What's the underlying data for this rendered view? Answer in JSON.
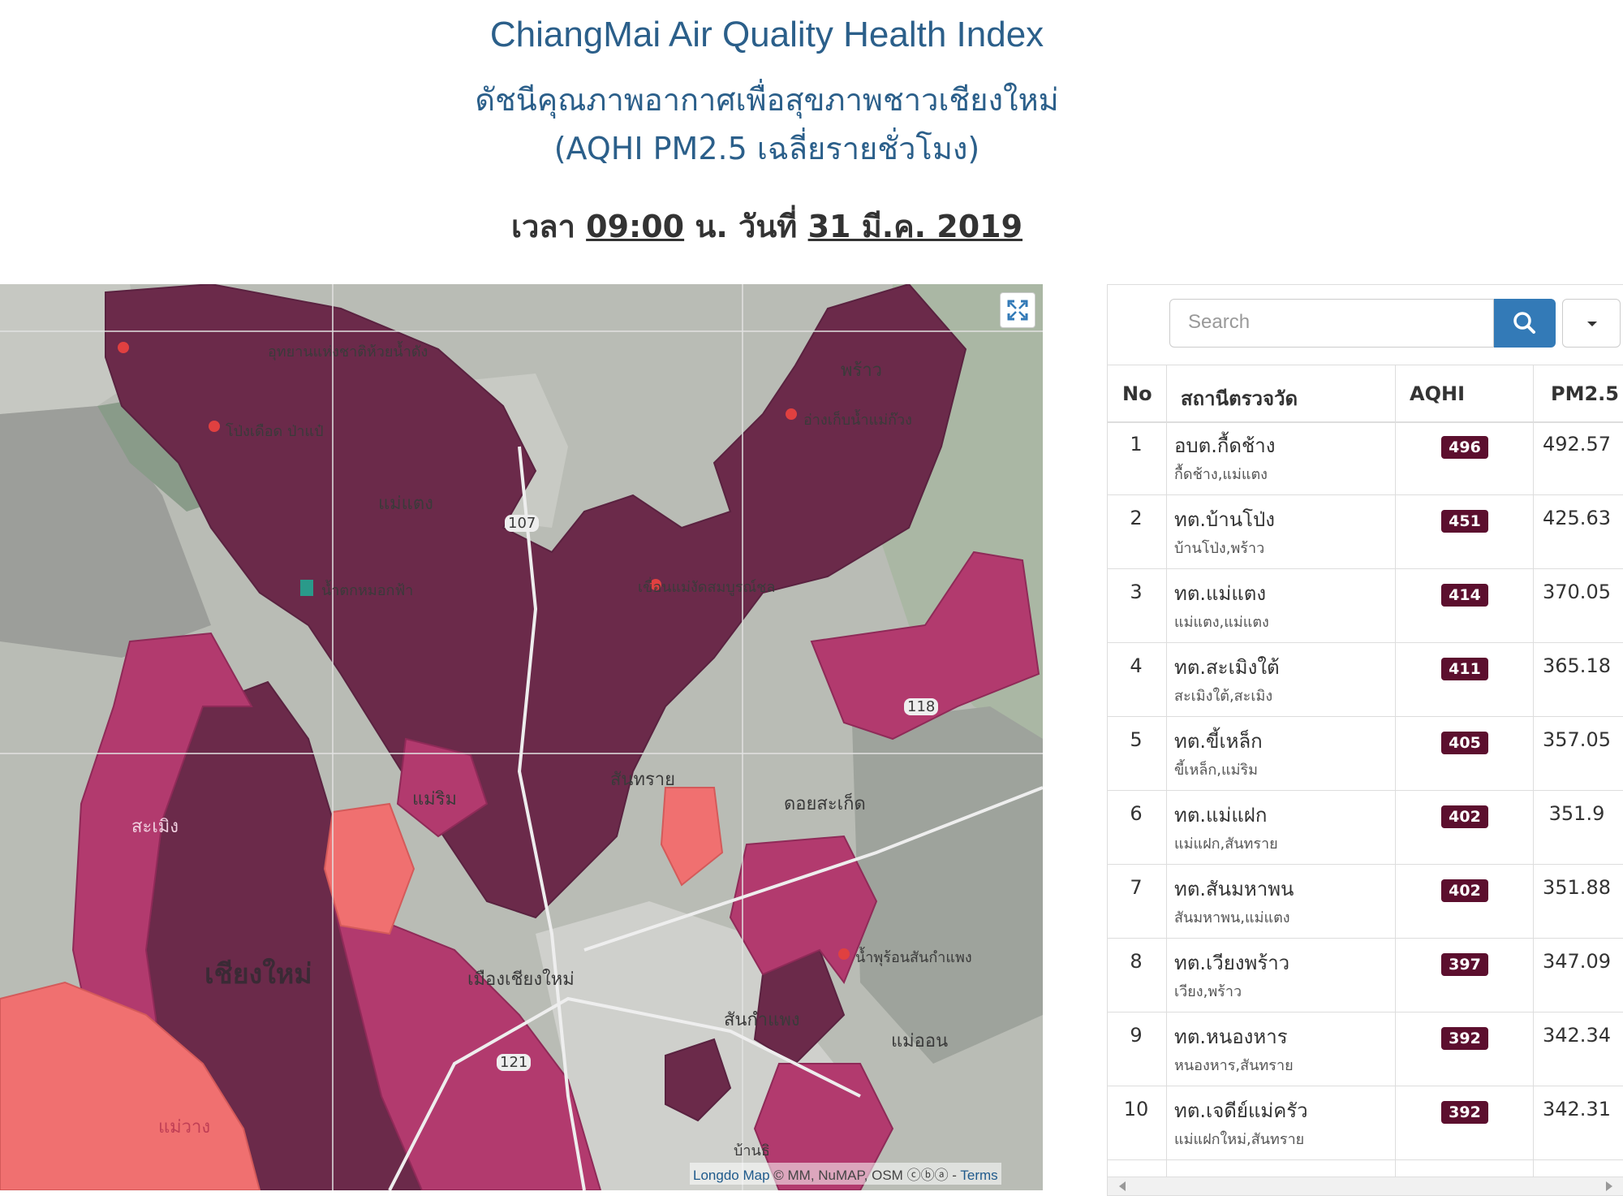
{
  "header": {
    "title_en": "ChiangMai Air Quality Health Index",
    "title_th": "ดัชนีคุณภาพอากาศเพื่อสุขภาพชาวเชียงใหม่",
    "subtitle": "(AQHI PM2.5 เฉลี่ยรายชั่วโมง)",
    "time_prefix": "เวลา",
    "time": "09:00",
    "time_unit": "น. วันที่",
    "date": "31 มี.ค. 2019"
  },
  "map": {
    "attribution_brand": "Longdo Map",
    "attribution_text": "© MM, NuMAP, OSM",
    "attribution_terms": "Terms",
    "labels": {
      "chiangmai": "เชียงใหม่",
      "samoeng": "สะเมิง",
      "maewang": "แม่วาง",
      "maerim": "แม่ริม",
      "maetaeng": "แม่แตง",
      "phrao": "พร้าว",
      "doisaket": "ดอยสะเก็ด",
      "maeon": "แม่ออน",
      "sansai": "สันทราย",
      "sankamphaeng": "สันกำแพง",
      "mueang": "เมืองเชียงใหม่",
      "waterfall": "น้ำตกหมอกฟ้า",
      "bansahtong": "บ้านธิ",
      "hotspring": "น้ำพุร้อนสันกำแพง",
      "dam": "เขื่อนแม่งัดสมบูรณ์ชล",
      "pongduet": "โป่งเดือด ป่าแป๋",
      "park": "อุทยานแห่งชาติห้วยน้ำดัง",
      "reservoir": "อ่างเก็บน้ำแม่ก๊วง",
      "road107": "107",
      "road118": "118",
      "road121": "121"
    },
    "colors": {
      "very_high": "#6b2a4a",
      "high": "#b23a6e",
      "moderate": "#f07070",
      "terrain": "#b8bbb5"
    }
  },
  "table": {
    "search_placeholder": "Search",
    "search_icon": "search-icon",
    "dropdown_icon": "caret-down-icon",
    "headers": {
      "no": "No",
      "station": "สถานีตรวจวัด",
      "aqhi": "AQHI",
      "pm25": "PM2.5"
    },
    "rows": [
      {
        "no": "1",
        "station": "อบต.กื้ดช้าง",
        "area": "กื้ดช้าง,แม่แตง",
        "aqhi": "496",
        "pm25": "492.57"
      },
      {
        "no": "2",
        "station": "ทต.บ้านโป่ง",
        "area": "บ้านโป่ง,พร้าว",
        "aqhi": "451",
        "pm25": "425.63"
      },
      {
        "no": "3",
        "station": "ทต.แม่แตง",
        "area": "แม่แตง,แม่แตง",
        "aqhi": "414",
        "pm25": "370.05"
      },
      {
        "no": "4",
        "station": "ทต.สะเมิงใต้",
        "area": "สะเมิงใต้,สะเมิง",
        "aqhi": "411",
        "pm25": "365.18"
      },
      {
        "no": "5",
        "station": "ทต.ขี้เหล็ก",
        "area": "ขี้เหล็ก,แม่ริม",
        "aqhi": "405",
        "pm25": "357.05"
      },
      {
        "no": "6",
        "station": "ทต.แม่แฝก",
        "area": "แม่แฝก,สันทราย",
        "aqhi": "402",
        "pm25": "351.9"
      },
      {
        "no": "7",
        "station": "ทต.สันมหาพน",
        "area": "สันมหาพน,แม่แตง",
        "aqhi": "402",
        "pm25": "351.88"
      },
      {
        "no": "8",
        "station": "ทต.เวียงพร้าว",
        "area": "เวียง,พร้าว",
        "aqhi": "397",
        "pm25": "347.09"
      },
      {
        "no": "9",
        "station": "ทต.หนองหาร",
        "area": "หนองหาร,สันทราย",
        "aqhi": "392",
        "pm25": "342.34"
      },
      {
        "no": "10",
        "station": "ทต.เจดีย์แม่ครัว",
        "area": "แม่แฝกใหม่,สันทราย",
        "aqhi": "392",
        "pm25": "342.31"
      }
    ]
  }
}
